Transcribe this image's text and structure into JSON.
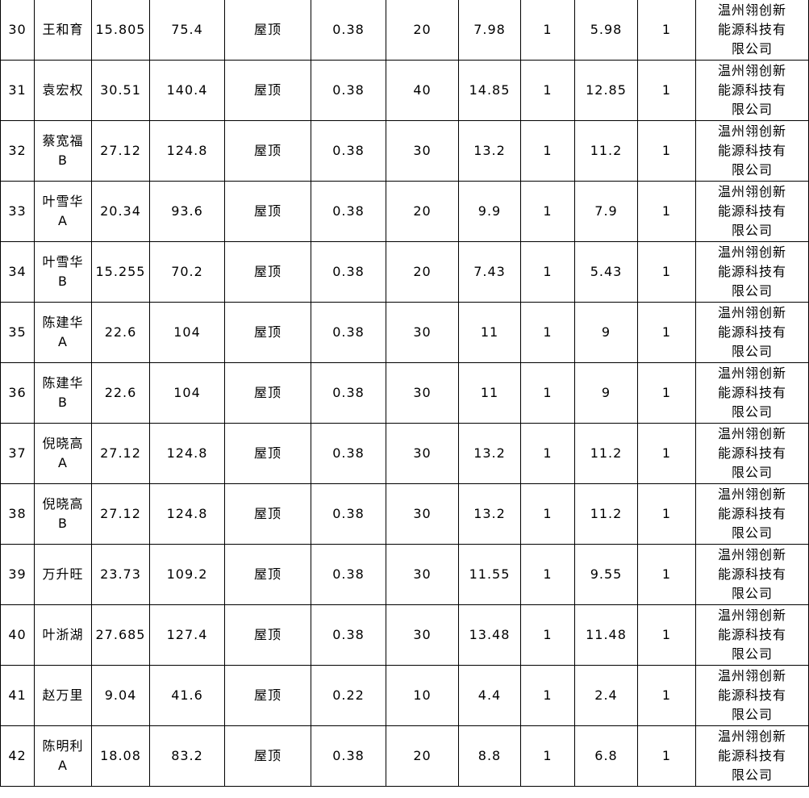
{
  "table": {
    "rows": [
      [
        "30",
        "王和育",
        "15.805",
        "75.4",
        "屋顶",
        "0.38",
        "20",
        "7.98",
        "1",
        "5.98",
        "1",
        "温州翎创新能源科技有限公司"
      ],
      [
        "31",
        "袁宏权",
        "30.51",
        "140.4",
        "屋顶",
        "0.38",
        "40",
        "14.85",
        "1",
        "12.85",
        "1",
        "温州翎创新能源科技有限公司"
      ],
      [
        "32",
        "蔡宽福B",
        "27.12",
        "124.8",
        "屋顶",
        "0.38",
        "30",
        "13.2",
        "1",
        "11.2",
        "1",
        "温州翎创新能源科技有限公司"
      ],
      [
        "33",
        "叶雪华A",
        "20.34",
        "93.6",
        "屋顶",
        "0.38",
        "20",
        "9.9",
        "1",
        "7.9",
        "1",
        "温州翎创新能源科技有限公司"
      ],
      [
        "34",
        "叶雪华B",
        "15.255",
        "70.2",
        "屋顶",
        "0.38",
        "20",
        "7.43",
        "1",
        "5.43",
        "1",
        "温州翎创新能源科技有限公司"
      ],
      [
        "35",
        "陈建华A",
        "22.6",
        "104",
        "屋顶",
        "0.38",
        "30",
        "11",
        "1",
        "9",
        "1",
        "温州翎创新能源科技有限公司"
      ],
      [
        "36",
        "陈建华B",
        "22.6",
        "104",
        "屋顶",
        "0.38",
        "30",
        "11",
        "1",
        "9",
        "1",
        "温州翎创新能源科技有限公司"
      ],
      [
        "37",
        "倪晓高A",
        "27.12",
        "124.8",
        "屋顶",
        "0.38",
        "30",
        "13.2",
        "1",
        "11.2",
        "1",
        "温州翎创新能源科技有限公司"
      ],
      [
        "38",
        "倪晓高B",
        "27.12",
        "124.8",
        "屋顶",
        "0.38",
        "30",
        "13.2",
        "1",
        "11.2",
        "1",
        "温州翎创新能源科技有限公司"
      ],
      [
        "39",
        "万升旺",
        "23.73",
        "109.2",
        "屋顶",
        "0.38",
        "30",
        "11.55",
        "1",
        "9.55",
        "1",
        "温州翎创新能源科技有限公司"
      ],
      [
        "40",
        "叶浙湖",
        "27.685",
        "127.4",
        "屋顶",
        "0.38",
        "30",
        "13.48",
        "1",
        "11.48",
        "1",
        "温州翎创新能源科技有限公司"
      ],
      [
        "41",
        "赵万里",
        "9.04",
        "41.6",
        "屋顶",
        "0.22",
        "10",
        "4.4",
        "1",
        "2.4",
        "1",
        "温州翎创新能源科技有限公司"
      ],
      [
        "42",
        "陈明利A",
        "18.08",
        "83.2",
        "屋顶",
        "0.38",
        "20",
        "8.8",
        "1",
        "6.8",
        "1",
        "温州翎创新能源科技有限公司"
      ]
    ]
  }
}
